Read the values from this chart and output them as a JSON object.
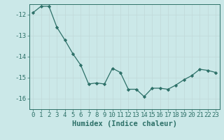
{
  "x": [
    0,
    1,
    2,
    3,
    4,
    5,
    6,
    7,
    8,
    9,
    10,
    11,
    12,
    13,
    14,
    15,
    16,
    17,
    18,
    19,
    20,
    21,
    22,
    23
  ],
  "y": [
    -11.9,
    -11.6,
    -11.6,
    -12.6,
    -13.2,
    -13.85,
    -14.4,
    -15.3,
    -15.25,
    -15.3,
    -14.55,
    -14.75,
    -15.55,
    -15.55,
    -15.9,
    -15.5,
    -15.5,
    -15.55,
    -15.35,
    -15.1,
    -14.9,
    -14.6,
    -14.65,
    -14.75
  ],
  "xlabel": "Humidex (Indice chaleur)",
  "ylim": [
    -16.5,
    -11.5
  ],
  "xlim": [
    -0.5,
    23.5
  ],
  "yticks": [
    -16,
    -15,
    -14,
    -13,
    -12
  ],
  "xticks": [
    0,
    1,
    2,
    3,
    4,
    5,
    6,
    7,
    8,
    9,
    10,
    11,
    12,
    13,
    14,
    15,
    16,
    17,
    18,
    19,
    20,
    21,
    22,
    23
  ],
  "line_color": "#2d7068",
  "marker_color": "#2d7068",
  "bg_color": "#cbe8e8",
  "grid_major_color": "#c0d8d8",
  "grid_minor_color": "#d0e4e4",
  "spine_color": "#2d7068",
  "tick_color": "#2d7068",
  "label_color": "#2d7068",
  "tick_fontsize": 6.5,
  "xlabel_fontsize": 7.5
}
